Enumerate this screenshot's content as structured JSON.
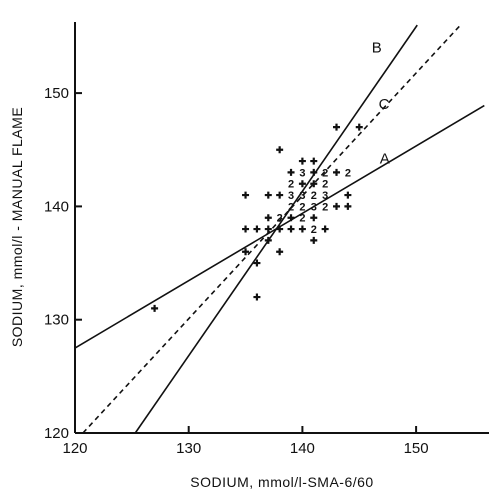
{
  "chart_data": {
    "type": "scatter",
    "title": "",
    "xlabel": "SODIUM, mmol/l-SMA-6/60",
    "ylabel": "SODIUM, mmol/l - MANUAL FLAME",
    "xlim": [
      120,
      156
    ],
    "ylim": [
      120,
      156
    ],
    "x_ticks": [
      120,
      130,
      140,
      150
    ],
    "y_ticks": [
      120,
      130,
      140,
      150
    ],
    "x_tick_labels": [
      "120",
      "130",
      "140",
      "150"
    ],
    "y_tick_labels": [
      "120",
      "130",
      "140",
      "150"
    ],
    "grid": false,
    "points": [
      {
        "x": 127,
        "y": 131,
        "label": "+"
      },
      {
        "x": 135,
        "y": 141,
        "label": "+"
      },
      {
        "x": 135,
        "y": 138,
        "label": "+"
      },
      {
        "x": 135,
        "y": 136,
        "label": "+"
      },
      {
        "x": 136,
        "y": 132,
        "label": "+"
      },
      {
        "x": 136,
        "y": 135,
        "label": "+"
      },
      {
        "x": 136,
        "y": 138,
        "label": "+"
      },
      {
        "x": 137,
        "y": 141,
        "label": "+"
      },
      {
        "x": 137,
        "y": 139,
        "label": "+"
      },
      {
        "x": 137,
        "y": 138,
        "label": "+"
      },
      {
        "x": 137,
        "y": 137,
        "label": "+"
      },
      {
        "x": 138,
        "y": 145,
        "label": "+"
      },
      {
        "x": 138,
        "y": 141,
        "label": "+"
      },
      {
        "x": 138,
        "y": 139,
        "label": "2"
      },
      {
        "x": 138,
        "y": 138,
        "label": "+"
      },
      {
        "x": 138,
        "y": 136,
        "label": "+"
      },
      {
        "x": 139,
        "y": 143,
        "label": "+"
      },
      {
        "x": 139,
        "y": 142,
        "label": "2"
      },
      {
        "x": 139,
        "y": 141,
        "label": "3"
      },
      {
        "x": 139,
        "y": 140,
        "label": "2"
      },
      {
        "x": 139,
        "y": 139,
        "label": "+"
      },
      {
        "x": 139,
        "y": 138,
        "label": "+"
      },
      {
        "x": 140,
        "y": 144,
        "label": "+"
      },
      {
        "x": 140,
        "y": 143,
        "label": "3"
      },
      {
        "x": 140,
        "y": 142,
        "label": "+"
      },
      {
        "x": 140,
        "y": 141,
        "label": "3"
      },
      {
        "x": 140,
        "y": 140,
        "label": "2"
      },
      {
        "x": 140,
        "y": 139,
        "label": "2"
      },
      {
        "x": 140,
        "y": 138,
        "label": "+"
      },
      {
        "x": 141,
        "y": 144,
        "label": "+"
      },
      {
        "x": 141,
        "y": 143,
        "label": "+"
      },
      {
        "x": 141,
        "y": 142,
        "label": "+"
      },
      {
        "x": 141,
        "y": 141,
        "label": "2"
      },
      {
        "x": 141,
        "y": 140,
        "label": "3"
      },
      {
        "x": 141,
        "y": 139,
        "label": "+"
      },
      {
        "x": 141,
        "y": 138,
        "label": "2"
      },
      {
        "x": 141,
        "y": 137,
        "label": "+"
      },
      {
        "x": 142,
        "y": 143,
        "label": "2"
      },
      {
        "x": 142,
        "y": 142,
        "label": "2"
      },
      {
        "x": 142,
        "y": 141,
        "label": "3"
      },
      {
        "x": 142,
        "y": 140,
        "label": "2"
      },
      {
        "x": 142,
        "y": 138,
        "label": "+"
      },
      {
        "x": 143,
        "y": 147,
        "label": "+"
      },
      {
        "x": 143,
        "y": 143,
        "label": "+"
      },
      {
        "x": 143,
        "y": 140,
        "label": "+"
      },
      {
        "x": 144,
        "y": 143,
        "label": "2"
      },
      {
        "x": 144,
        "y": 141,
        "label": "+"
      },
      {
        "x": 144,
        "y": 140,
        "label": "+"
      },
      {
        "x": 145,
        "y": 147,
        "label": "+"
      }
    ],
    "lines": [
      {
        "name": "A",
        "style": "solid",
        "x": [
          120,
          156
        ],
        "y": [
          127.5,
          148.9
        ],
        "label_at": [
          146.8,
          143.8
        ]
      },
      {
        "name": "B",
        "style": "solid",
        "x": [
          125.3,
          150.1
        ],
        "y": [
          120,
          156
        ],
        "label_at": [
          146.1,
          153.6
        ]
      },
      {
        "name": "C",
        "style": "dashed",
        "x": [
          120.7,
          153.9
        ],
        "y": [
          120,
          156
        ],
        "label_at": [
          146.7,
          148.6
        ]
      }
    ]
  }
}
